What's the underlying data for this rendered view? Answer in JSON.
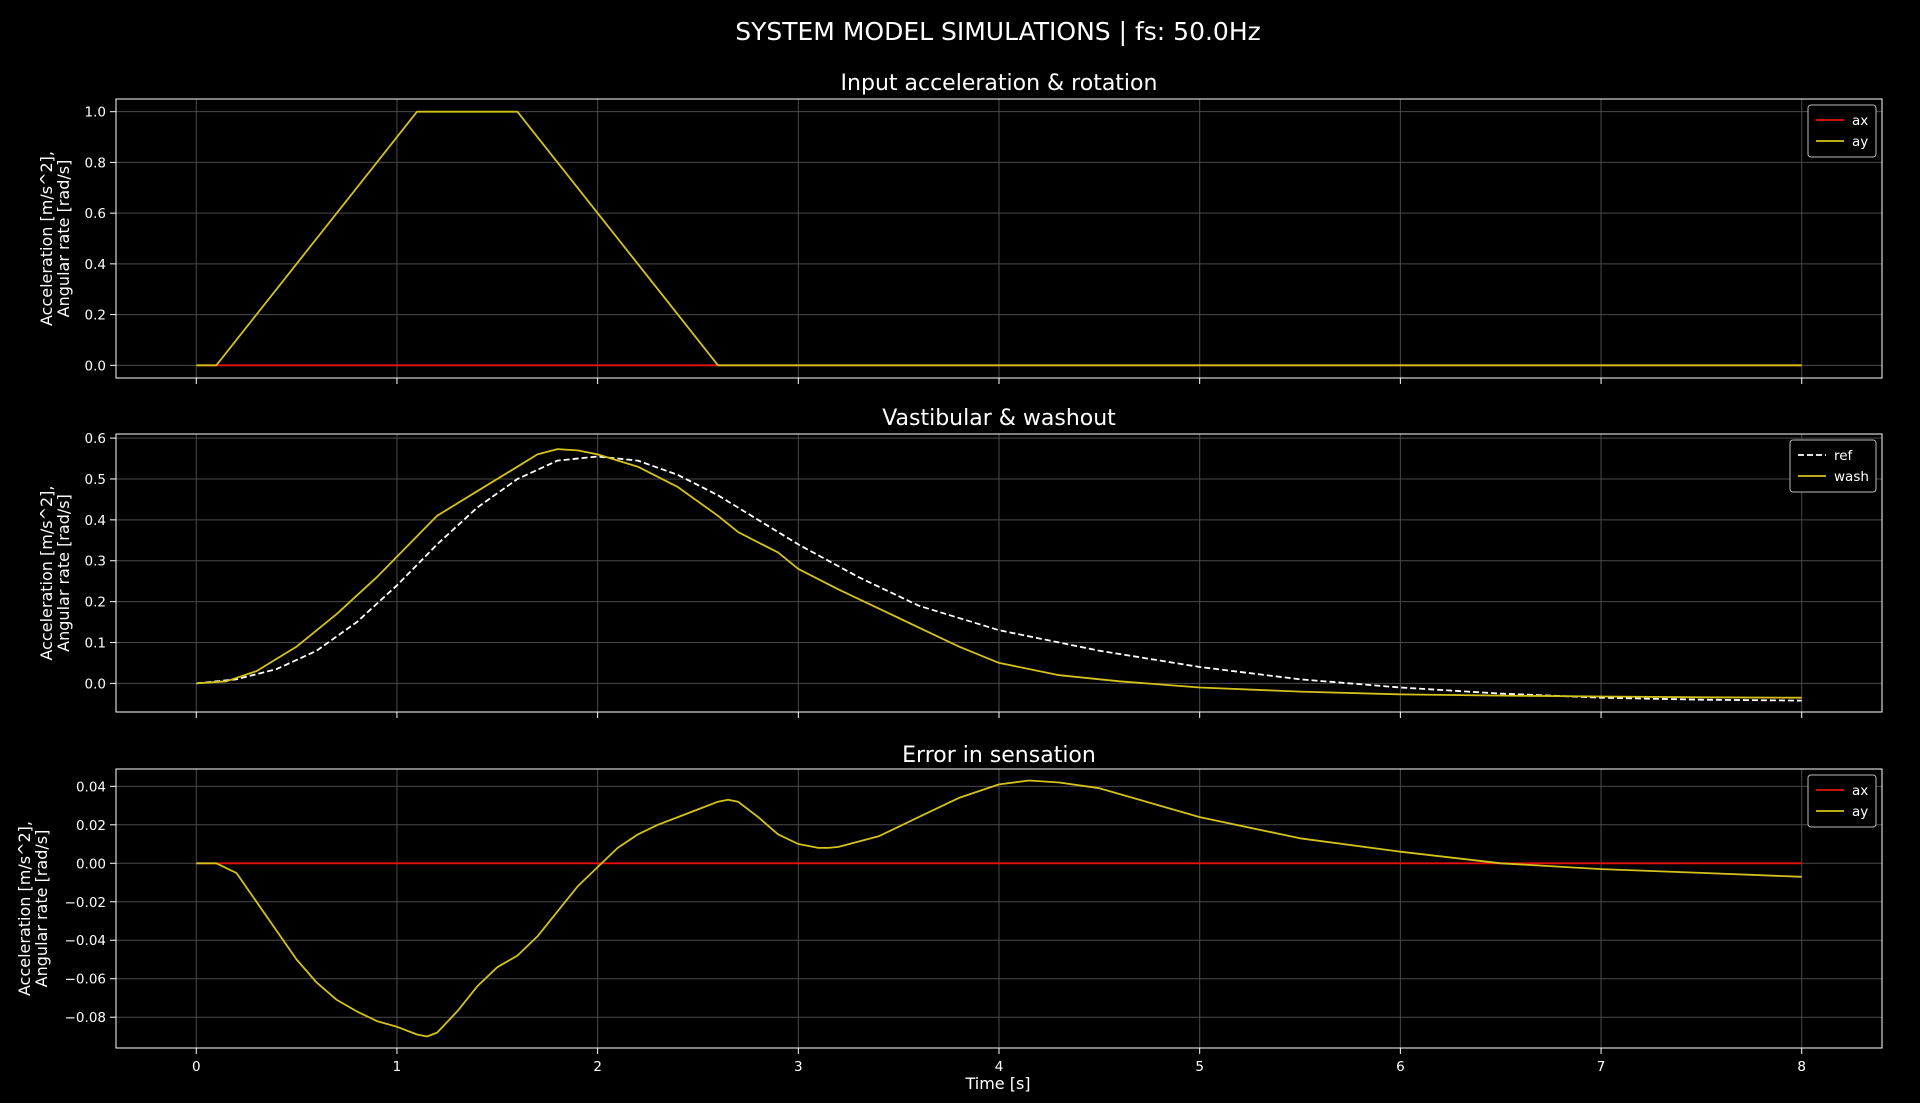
{
  "figure": {
    "title": "SYSTEM MODEL SIMULATIONS | fs: 50.0Hz",
    "xlabel": "Time [s]",
    "xticks": [
      "0",
      "1",
      "2",
      "3",
      "4",
      "5",
      "6",
      "7",
      "8"
    ]
  },
  "colors": {
    "background": "#000000",
    "ax": "#e8120f",
    "ay": "#d4c21b",
    "ref": "#ffffff",
    "grid": "#4a4a4a",
    "frame": "#ffffff"
  },
  "chart_data": [
    {
      "type": "line",
      "title": "Input acceleration & rotation",
      "ylabel": [
        "Acceleration [m/s^2],",
        "Angular rate [rad/s]"
      ],
      "xlim": [
        -0.4,
        8.4
      ],
      "ylim": [
        -0.05,
        1.05
      ],
      "yticks": [
        0.0,
        0.2,
        0.4,
        0.6,
        0.8,
        1.0
      ],
      "ytick_labels": [
        "0.0",
        "0.2",
        "0.4",
        "0.6",
        "0.8",
        "1.0"
      ],
      "grid": true,
      "legend_position": "top-right",
      "series": [
        {
          "name": "ax",
          "style": "solid",
          "color": "#e8120f",
          "x": [
            0,
            8
          ],
          "y": [
            0,
            0
          ]
        },
        {
          "name": "ay",
          "style": "solid",
          "color": "#d4c21b",
          "x": [
            0,
            0.1,
            1.1,
            1.6,
            2.6,
            8.0
          ],
          "y": [
            0,
            0,
            1.0,
            1.0,
            0,
            0
          ]
        }
      ]
    },
    {
      "type": "line",
      "title": "Vastibular & washout",
      "ylabel": [
        "Acceleration [m/s^2],",
        "Angular rate [rad/s]"
      ],
      "xlim": [
        -0.4,
        8.4
      ],
      "ylim": [
        -0.07,
        0.61
      ],
      "yticks": [
        0.0,
        0.1,
        0.2,
        0.3,
        0.4,
        0.5,
        0.6
      ],
      "ytick_labels": [
        "0.0",
        "0.1",
        "0.2",
        "0.3",
        "0.4",
        "0.5",
        "0.6"
      ],
      "grid": true,
      "legend_position": "top-right",
      "series": [
        {
          "name": "ref",
          "style": "dashed",
          "color": "#ffffff",
          "x": [
            0,
            0.2,
            0.4,
            0.6,
            0.8,
            1.0,
            1.2,
            1.4,
            1.6,
            1.8,
            2.0,
            2.2,
            2.4,
            2.6,
            2.8,
            3.0,
            3.3,
            3.6,
            4.0,
            4.5,
            5.0,
            5.5,
            6.0,
            6.5,
            7.0,
            7.5,
            8.0
          ],
          "y": [
            0,
            0.01,
            0.035,
            0.08,
            0.15,
            0.24,
            0.34,
            0.43,
            0.5,
            0.545,
            0.555,
            0.545,
            0.51,
            0.46,
            0.4,
            0.34,
            0.26,
            0.19,
            0.13,
            0.08,
            0.04,
            0.01,
            -0.01,
            -0.025,
            -0.035,
            -0.04,
            -0.042
          ]
        },
        {
          "name": "wash",
          "style": "solid",
          "color": "#d4c21b",
          "x": [
            0,
            0.15,
            0.3,
            0.5,
            0.7,
            0.9,
            1.0,
            1.1,
            1.2,
            1.4,
            1.6,
            1.7,
            1.8,
            1.9,
            2.0,
            2.2,
            2.4,
            2.6,
            2.7,
            2.9,
            3.0,
            3.2,
            3.5,
            3.8,
            4.0,
            4.3,
            4.6,
            5.0,
            5.5,
            6.0,
            6.5,
            7.0,
            7.5,
            8.0
          ],
          "y": [
            0,
            0.005,
            0.03,
            0.09,
            0.17,
            0.26,
            0.31,
            0.36,
            0.41,
            0.47,
            0.53,
            0.56,
            0.573,
            0.57,
            0.56,
            0.53,
            0.48,
            0.41,
            0.37,
            0.32,
            0.28,
            0.23,
            0.16,
            0.09,
            0.05,
            0.02,
            0.005,
            -0.01,
            -0.02,
            -0.027,
            -0.03,
            -0.032,
            -0.034,
            -0.035
          ]
        }
      ]
    },
    {
      "type": "line",
      "title": "Error in sensation",
      "ylabel": [
        "Acceleration [m/s^2],",
        "Angular rate [rad/s]"
      ],
      "xlabel": "Time [s]",
      "xlim": [
        -0.4,
        8.4
      ],
      "ylim": [
        -0.096,
        0.049
      ],
      "yticks": [
        -0.08,
        -0.06,
        -0.04,
        -0.02,
        0.0,
        0.02,
        0.04
      ],
      "ytick_labels": [
        "−0.08",
        "−0.06",
        "−0.04",
        "−0.02",
        "0.00",
        "0.02",
        "0.04"
      ],
      "grid": true,
      "legend_position": "top-right",
      "series": [
        {
          "name": "ax",
          "style": "solid",
          "color": "#e8120f",
          "x": [
            0,
            8
          ],
          "y": [
            0,
            0
          ]
        },
        {
          "name": "ay",
          "style": "solid",
          "color": "#d4c21b",
          "x": [
            0,
            0.1,
            0.2,
            0.3,
            0.4,
            0.5,
            0.6,
            0.7,
            0.8,
            0.9,
            1.0,
            1.1,
            1.15,
            1.2,
            1.3,
            1.4,
            1.5,
            1.6,
            1.7,
            1.8,
            1.9,
            2.0,
            2.1,
            2.2,
            2.3,
            2.4,
            2.5,
            2.6,
            2.65,
            2.7,
            2.8,
            2.9,
            3.0,
            3.1,
            3.15,
            3.2,
            3.4,
            3.6,
            3.8,
            4.0,
            4.15,
            4.3,
            4.5,
            5.0,
            5.5,
            6.0,
            6.5,
            7.0,
            7.5,
            8.0
          ],
          "y": [
            0,
            0,
            -0.005,
            -0.02,
            -0.035,
            -0.05,
            -0.062,
            -0.071,
            -0.077,
            -0.082,
            -0.085,
            -0.089,
            -0.09,
            -0.088,
            -0.077,
            -0.064,
            -0.054,
            -0.048,
            -0.038,
            -0.025,
            -0.012,
            -0.002,
            0.008,
            0.015,
            0.02,
            0.024,
            0.028,
            0.032,
            0.033,
            0.032,
            0.024,
            0.015,
            0.01,
            0.008,
            0.008,
            0.0085,
            0.014,
            0.024,
            0.034,
            0.041,
            0.043,
            0.042,
            0.039,
            0.024,
            0.013,
            0.006,
            0.0,
            -0.003,
            -0.005,
            -0.007
          ]
        }
      ]
    }
  ]
}
